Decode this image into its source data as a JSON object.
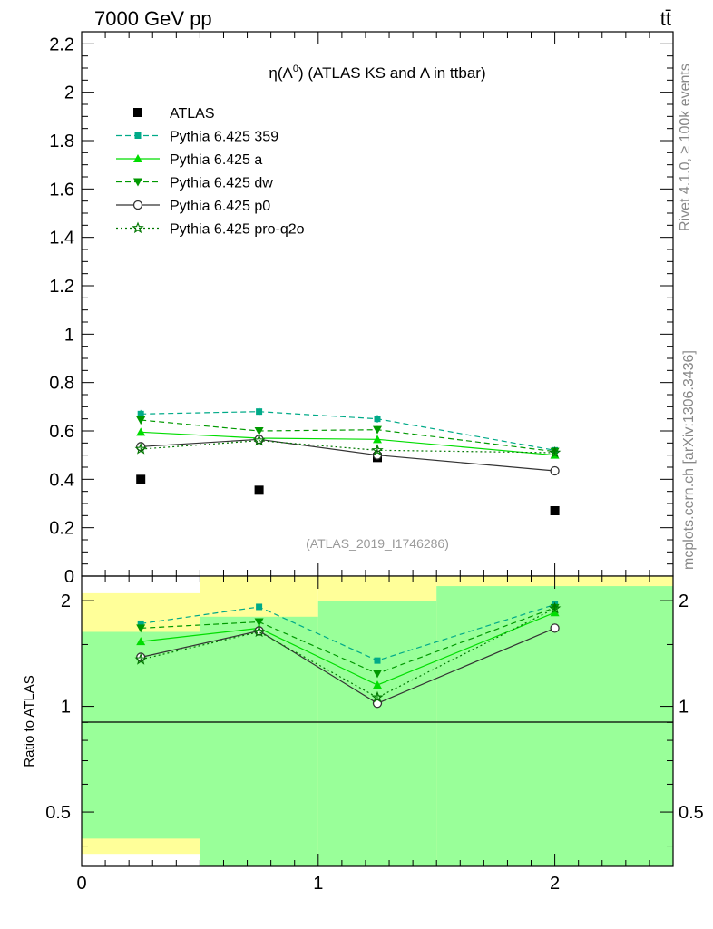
{
  "header": {
    "energy_label": "7000 GeV pp",
    "process_label": "tt̄"
  },
  "side_text": {
    "rivet": "Rivet 4.1.0, ≥ 100k events",
    "mcplots": "mcplots.cern.ch [arXiv:1306.3436]"
  },
  "chart_data": [
    {
      "panel": "main",
      "type": "line",
      "title": "η(Λ⁰) (ATLAS KS and Λ in ttbar)",
      "title_parts": {
        "eta": "η(Λ",
        "sup": "0",
        "rest": ") (ATLAS KS and Λ in ttbar)"
      },
      "watermark": "(ATLAS_2019_I1746286)",
      "xlim": [
        0,
        2.5
      ],
      "ylim": [
        0,
        2.25
      ],
      "y_ticks": [
        0,
        0.2,
        0.4,
        0.6,
        0.8,
        1,
        1.2,
        1.4,
        1.6,
        1.8,
        2,
        2.2
      ],
      "y_tick_labels": [
        "0",
        "0.2",
        "0.4",
        "0.6",
        "0.8",
        "1",
        "1.2",
        "1.4",
        "1.6",
        "1.8",
        "2",
        "2.2"
      ],
      "x": [
        0.25,
        0.75,
        1.25,
        2.0
      ],
      "series": [
        {
          "name": "ATLAS",
          "values": [
            0.4,
            0.355,
            0.49,
            0.27
          ],
          "color": "#000000",
          "marker": "square",
          "line": "none"
        },
        {
          "name": "Pythia 6.425 359",
          "values": [
            0.67,
            0.68,
            0.65,
            0.52
          ],
          "color": "#00aa88",
          "marker": "smallsquare",
          "line": "dashed"
        },
        {
          "name": "Pythia 6.425 a",
          "values": [
            0.595,
            0.57,
            0.565,
            0.5
          ],
          "color": "#00dd00",
          "marker": "triangle-up",
          "line": "solid"
        },
        {
          "name": "Pythia 6.425 dw",
          "values": [
            0.645,
            0.6,
            0.605,
            0.515
          ],
          "color": "#009900",
          "marker": "triangle-down",
          "line": "dashed"
        },
        {
          "name": "Pythia 6.425 p0",
          "values": [
            0.535,
            0.565,
            0.5,
            0.435
          ],
          "color": "#333333",
          "marker": "circle-open",
          "line": "solid"
        },
        {
          "name": "Pythia 6.425 pro-q2o",
          "values": [
            0.525,
            0.56,
            0.52,
            0.51
          ],
          "color": "#007700",
          "marker": "star-open",
          "line": "dotted"
        }
      ]
    },
    {
      "panel": "ratio",
      "type": "line",
      "ylabel": "Ratio to ATLAS",
      "scale": "log",
      "xlim": [
        0,
        2.5
      ],
      "ylim": [
        0.35,
        2.35
      ],
      "x_ticks": [
        0,
        1,
        2
      ],
      "x_tick_labels": [
        "0",
        "1",
        "2"
      ],
      "y_ticks": [
        0.5,
        1,
        2
      ],
      "y_tick_labels": [
        "0.5",
        "1",
        "2"
      ],
      "x": [
        0.25,
        0.75,
        1.25,
        2.0
      ],
      "bands": [
        {
          "x": [
            0.0,
            0.5
          ],
          "yellow": [
            0.38,
            2.1
          ],
          "green": [
            0.42,
            1.63
          ]
        },
        {
          "x": [
            0.5,
            1.0
          ],
          "yellow": [
            0.35,
            2.35
          ],
          "green": [
            0.35,
            1.8
          ]
        },
        {
          "x": [
            1.0,
            1.5
          ],
          "yellow": [
            0.35,
            2.35
          ],
          "green": [
            0.35,
            2.0
          ]
        },
        {
          "x": [
            1.5,
            2.5
          ],
          "yellow": [
            0.35,
            2.35
          ],
          "green": [
            0.35,
            2.2
          ]
        }
      ],
      "series": [
        {
          "name": "Pythia 6.425 359",
          "values": [
            1.72,
            1.92,
            1.35,
            1.95
          ],
          "color": "#00aa88",
          "marker": "smallsquare",
          "line": "dashed"
        },
        {
          "name": "Pythia 6.425 a",
          "values": [
            1.53,
            1.67,
            1.15,
            1.85
          ],
          "color": "#00dd00",
          "marker": "triangle-up",
          "line": "solid"
        },
        {
          "name": "Pythia 6.425 dw",
          "values": [
            1.67,
            1.74,
            1.24,
            1.91
          ],
          "color": "#009900",
          "marker": "triangle-down",
          "line": "dashed"
        },
        {
          "name": "Pythia 6.425 p0",
          "values": [
            1.38,
            1.64,
            1.02,
            1.67
          ],
          "color": "#333333",
          "marker": "circle-open",
          "line": "solid"
        },
        {
          "name": "Pythia 6.425 pro-q2o",
          "values": [
            1.36,
            1.63,
            1.06,
            1.9
          ],
          "color": "#007700",
          "marker": "star-open",
          "line": "dotted"
        }
      ]
    }
  ]
}
